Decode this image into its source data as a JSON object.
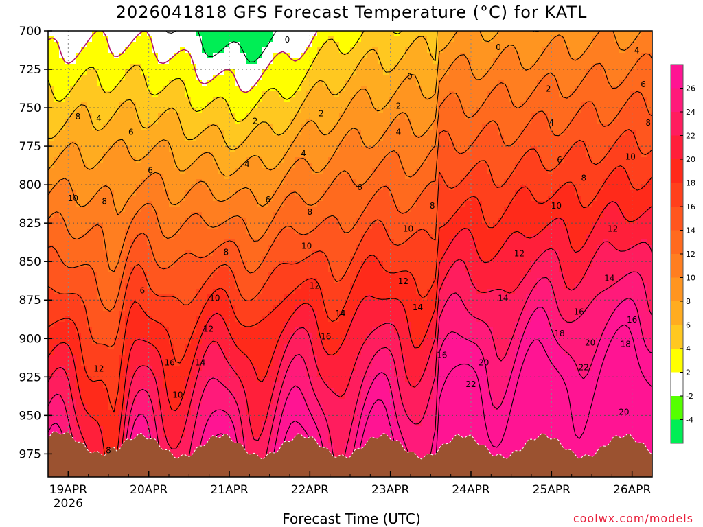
{
  "chart_data": {
    "type": "heatmap",
    "title": "2026041818 GFS Forecast Temperature (°C) for KATL",
    "xlabel": "Forecast Time (UTC)",
    "ylabel": "",
    "credit": "coolwx.com/models",
    "y_ticks": [
      700,
      725,
      750,
      775,
      800,
      825,
      850,
      875,
      900,
      925,
      950,
      975
    ],
    "ylim": [
      700,
      990
    ],
    "x_ticks": [
      {
        "day": 0,
        "label": "19APR",
        "sub": "2026"
      },
      {
        "day": 1,
        "label": "20APR",
        "sub": ""
      },
      {
        "day": 2,
        "label": "21APR",
        "sub": ""
      },
      {
        "day": 3,
        "label": "22APR",
        "sub": ""
      },
      {
        "day": 4,
        "label": "23APR",
        "sub": ""
      },
      {
        "day": 5,
        "label": "24APR",
        "sub": ""
      },
      {
        "day": 6,
        "label": "25APR",
        "sub": ""
      },
      {
        "day": 7,
        "label": "26APR",
        "sub": ""
      }
    ],
    "xlim": [
      -0.25,
      7.25
    ],
    "colorbar": {
      "labels": [
        26,
        24,
        22,
        20,
        18,
        16,
        14,
        12,
        10,
        8,
        6,
        4,
        2,
        -2,
        -4
      ],
      "colors": [
        "#ff1493",
        "#ff1a7a",
        "#ff1d5e",
        "#ff1f3a",
        "#ff2a1a",
        "#ff401c",
        "#ff561e",
        "#ff6a1e",
        "#ff7e20",
        "#ff9520",
        "#ffac20",
        "#ffc820",
        "#ffff00",
        "#ffffff",
        "#55ff00",
        "#00ee55"
      ]
    },
    "contour_labels": [
      {
        "t": 0.12,
        "p": 756,
        "v": "8"
      },
      {
        "t": 0.38,
        "p": 757,
        "v": "4"
      },
      {
        "t": 0.78,
        "p": 766,
        "v": "6"
      },
      {
        "t": 0.06,
        "p": 809,
        "v": "10"
      },
      {
        "t": 0.45,
        "p": 811,
        "v": "8"
      },
      {
        "t": 1.02,
        "p": 791,
        "v": "6"
      },
      {
        "t": 0.92,
        "p": 869,
        "v": "6"
      },
      {
        "t": 0.38,
        "p": 920,
        "v": "12"
      },
      {
        "t": 0.5,
        "p": 973,
        "v": "8"
      },
      {
        "t": 1.36,
        "p": 937,
        "v": "10"
      },
      {
        "t": 1.26,
        "p": 916,
        "v": "16"
      },
      {
        "t": 1.64,
        "p": 916,
        "v": "14"
      },
      {
        "t": 1.96,
        "p": 844,
        "v": "8"
      },
      {
        "t": 1.82,
        "p": 874,
        "v": "10"
      },
      {
        "t": 1.74,
        "p": 894,
        "v": "12"
      },
      {
        "t": 2.22,
        "p": 787,
        "v": "4"
      },
      {
        "t": 2.48,
        "p": 810,
        "v": "6"
      },
      {
        "t": 2.32,
        "p": 759,
        "v": "2"
      },
      {
        "t": 2.72,
        "p": 706,
        "v": "0"
      },
      {
        "t": 2.92,
        "p": 780,
        "v": "4"
      },
      {
        "t": 3.0,
        "p": 818,
        "v": "8"
      },
      {
        "t": 2.96,
        "p": 840,
        "v": "10"
      },
      {
        "t": 3.06,
        "p": 866,
        "v": "12"
      },
      {
        "t": 3.38,
        "p": 884,
        "v": "14"
      },
      {
        "t": 3.2,
        "p": 899,
        "v": "16"
      },
      {
        "t": 3.14,
        "p": 754,
        "v": "2"
      },
      {
        "t": 3.62,
        "p": 802,
        "v": "6"
      },
      {
        "t": 4.24,
        "p": 730,
        "v": "0"
      },
      {
        "t": 4.1,
        "p": 749,
        "v": "2"
      },
      {
        "t": 4.1,
        "p": 766,
        "v": "4"
      },
      {
        "t": 4.52,
        "p": 814,
        "v": "8"
      },
      {
        "t": 4.22,
        "p": 829,
        "v": "10"
      },
      {
        "t": 4.16,
        "p": 863,
        "v": "12"
      },
      {
        "t": 4.34,
        "p": 880,
        "v": "14"
      },
      {
        "t": 4.64,
        "p": 911,
        "v": "16"
      },
      {
        "t": 5.34,
        "p": 711,
        "v": "0"
      },
      {
        "t": 6.0,
        "p": 760,
        "v": "4"
      },
      {
        "t": 5.96,
        "p": 738,
        "v": "2"
      },
      {
        "t": 6.1,
        "p": 784,
        "v": "6"
      },
      {
        "t": 6.4,
        "p": 796,
        "v": "8"
      },
      {
        "t": 6.06,
        "p": 814,
        "v": "10"
      },
      {
        "t": 5.6,
        "p": 845,
        "v": "12"
      },
      {
        "t": 5.4,
        "p": 874,
        "v": "14"
      },
      {
        "t": 6.34,
        "p": 883,
        "v": "16"
      },
      {
        "t": 6.1,
        "p": 897,
        "v": "18"
      },
      {
        "t": 5.16,
        "p": 916,
        "v": "20"
      },
      {
        "t": 5.0,
        "p": 930,
        "v": "22"
      },
      {
        "t": 6.48,
        "p": 903,
        "v": "20"
      },
      {
        "t": 6.4,
        "p": 919,
        "v": "22"
      },
      {
        "t": 7.06,
        "p": 713,
        "v": "4"
      },
      {
        "t": 7.14,
        "p": 735,
        "v": "6"
      },
      {
        "t": 7.2,
        "p": 760,
        "v": "8"
      },
      {
        "t": 6.98,
        "p": 782,
        "v": "10"
      },
      {
        "t": 6.76,
        "p": 829,
        "v": "12"
      },
      {
        "t": 6.72,
        "p": 861,
        "v": "14"
      },
      {
        "t": 7.0,
        "p": 888,
        "v": "16"
      },
      {
        "t": 6.92,
        "p": 904,
        "v": "18"
      },
      {
        "t": 6.9,
        "p": 948,
        "v": "20"
      }
    ]
  }
}
